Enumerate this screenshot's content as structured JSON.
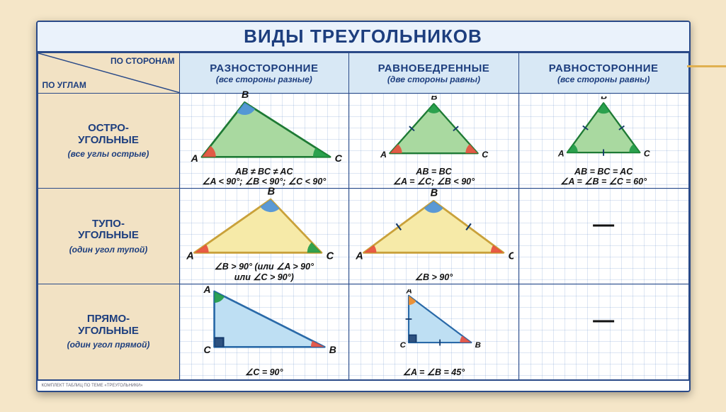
{
  "title": "ВИДЫ ТРЕУГОЛЬНИКОВ",
  "axes": {
    "top": "ПО СТОРОНАМ",
    "left": "ПО УГЛАМ"
  },
  "columns": [
    {
      "h1": "РАЗНОСТОРОННИЕ",
      "h2": "(все стороны разные)"
    },
    {
      "h1": "РАВНОБЕДРЕННЫЕ",
      "h2": "(две стороны равны)"
    },
    {
      "h1": "РАВНОСТОРОННИЕ",
      "h2": "(все стороны равны)"
    }
  ],
  "rows": [
    {
      "h1": "ОСТРО-\nУГОЛЬНЫЕ",
      "h2": "(все углы острые)"
    },
    {
      "h1": "ТУПО-\nУГОЛЬНЫЕ",
      "h2": "(один угол тупой)"
    },
    {
      "h1": "ПРЯМО-\nУГОЛЬНЫЕ",
      "h2": "(один угол прямой)"
    }
  ],
  "palette": {
    "border": "#2a4a88",
    "acuteFill": "#a9d9a0",
    "acuteStroke": "#1e7a34",
    "obtuseFill": "#f6eaa8",
    "obtuseStroke": "#c9a13a",
    "rightFill": "#bedff3",
    "rightStroke": "#2a6aa8",
    "angleRed": "#e74c3c",
    "angleGreen": "#1e9a45",
    "angleBlue": "#4a90d9",
    "angleOrange": "#f08a24",
    "tick": "#153a6b"
  },
  "cells": {
    "r0c0": {
      "caption": "AB ≠ BC ≠ AC\n∠A < 90°;  ∠B < 90°;  ∠C < 90°"
    },
    "r0c1": {
      "caption": "AB = BC\n∠A = ∠C;  ∠B < 90°"
    },
    "r0c2": {
      "caption": "AB = BC = AC\n∠A = ∠B = ∠C = 60°"
    },
    "r1c0": {
      "caption": "∠B > 90°  (или  ∠A > 90°\nили  ∠C > 90°)"
    },
    "r1c1": {
      "caption": "∠B > 90°"
    },
    "r1c2": {
      "caption": "—",
      "empty": true
    },
    "r2c0": {
      "caption": "∠C = 90°"
    },
    "r2c1": {
      "caption": "∠A = ∠B = 45°"
    },
    "r2c2": {
      "caption": "—",
      "empty": true
    }
  },
  "vertexLabels": {
    "A": "A",
    "B": "B",
    "C": "C"
  },
  "footer": {
    "left": "КОМПЛЕКТ ТАБЛИЦ ПО ТЕМЕ «ТРЕУГОЛЬНИКИ»",
    "right": ""
  }
}
